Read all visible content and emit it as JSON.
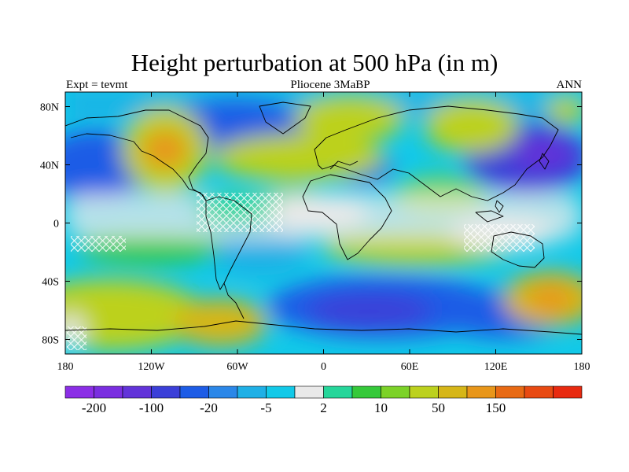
{
  "title": "Height perturbation at 500 hPa (in m)",
  "subtitle_left": "Expt = tevmt",
  "subtitle_center": "Pliocene   3MaBP",
  "subtitle_right": "ANN",
  "map": {
    "projection": "cylindrical-equidistant",
    "lon_range": [
      -180,
      180
    ],
    "lat_range": [
      -90,
      90
    ],
    "x_ticks": [
      {
        "value": -180,
        "label": "180"
      },
      {
        "value": -120,
        "label": "120W"
      },
      {
        "value": -60,
        "label": "60W"
      },
      {
        "value": 0,
        "label": "0"
      },
      {
        "value": 60,
        "label": "60E"
      },
      {
        "value": 120,
        "label": "120E"
      },
      {
        "value": 180,
        "label": "180"
      }
    ],
    "y_ticks": [
      {
        "value": 80,
        "label": "80N"
      },
      {
        "value": 40,
        "label": "40N"
      },
      {
        "value": 0,
        "label": "0"
      },
      {
        "value": -40,
        "label": "40S"
      },
      {
        "value": -80,
        "label": "80S"
      }
    ]
  },
  "colorbar": {
    "colors": [
      "#8b2ee6",
      "#7a2ee0",
      "#6233d9",
      "#3b3fd8",
      "#1d5ce6",
      "#2b87e8",
      "#1fb0e6",
      "#12c9e8",
      "#e9e9e9",
      "#26d69a",
      "#35c93a",
      "#7cd228",
      "#bcd11e",
      "#d6b618",
      "#e8961a",
      "#e86a14",
      "#e84a12",
      "#e82a10"
    ],
    "labels": [
      {
        "index": 1,
        "text": "-200"
      },
      {
        "index": 3,
        "text": "-100"
      },
      {
        "index": 5,
        "text": "-20"
      },
      {
        "index": 7,
        "text": "-5"
      },
      {
        "index": 9,
        "text": "2"
      },
      {
        "index": 11,
        "text": "10"
      },
      {
        "index": 13,
        "text": "50"
      },
      {
        "index": 15,
        "text": "150"
      }
    ]
  },
  "field": [
    {
      "lon": -160,
      "lat": 55,
      "value": -30
    },
    {
      "lon": -150,
      "lat": 20,
      "value": -25
    },
    {
      "lon": -110,
      "lat": 50,
      "value": 60
    },
    {
      "lon": -60,
      "lat": 65,
      "value": -40
    },
    {
      "lon": -40,
      "lat": 20,
      "value": 30
    },
    {
      "lon": 20,
      "lat": 75,
      "value": 40
    },
    {
      "lon": 10,
      "lat": 42,
      "value": 45
    },
    {
      "lon": 40,
      "lat": 40,
      "value": -30
    },
    {
      "lon": 70,
      "lat": 60,
      "value": 40
    },
    {
      "lon": 140,
      "lat": 45,
      "value": -60
    },
    {
      "lon": 175,
      "lat": 70,
      "value": 20
    },
    {
      "lon": -30,
      "lat": -25,
      "value": -20
    },
    {
      "lon": 40,
      "lat": -50,
      "value": -70
    },
    {
      "lon": 120,
      "lat": -55,
      "value": -40
    },
    {
      "lon": -140,
      "lat": -55,
      "value": 50
    },
    {
      "lon": 160,
      "lat": -50,
      "value": 60
    },
    {
      "lon": -60,
      "lat": -70,
      "value": 35
    },
    {
      "lon": 60,
      "lat": -20,
      "value": 20
    },
    {
      "lon": 0,
      "lat": 0,
      "value": 3
    },
    {
      "lon": 120,
      "lat": 0,
      "value": 3
    }
  ]
}
